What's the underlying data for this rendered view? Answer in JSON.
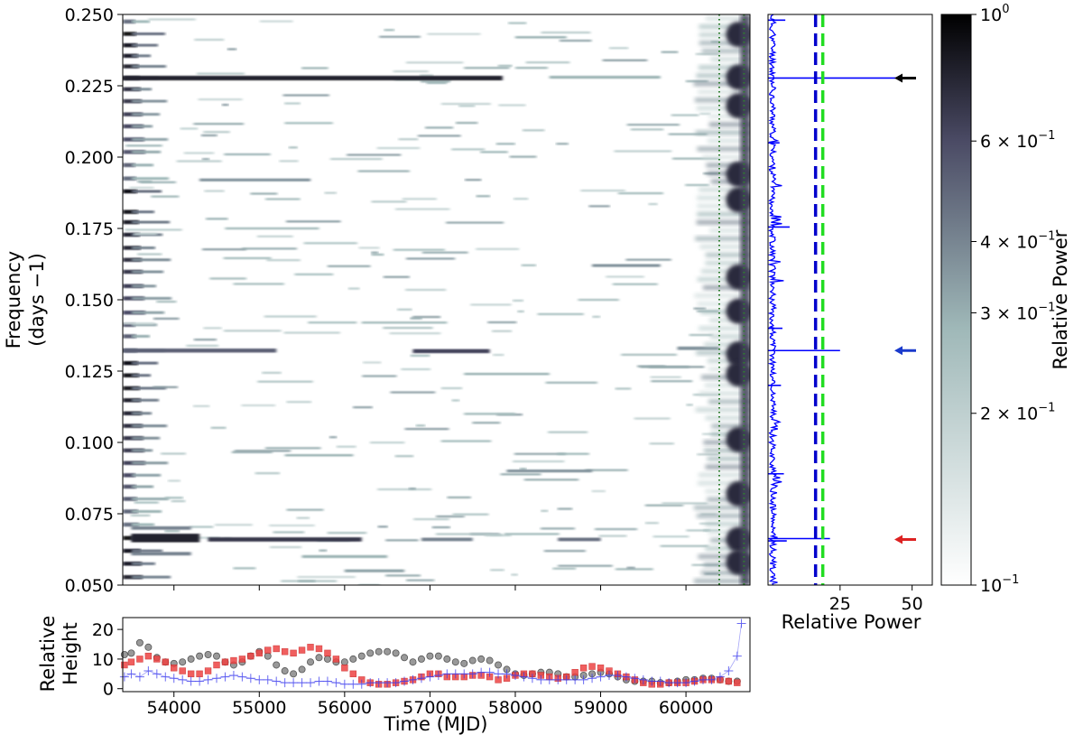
{
  "chart_data": [
    {
      "id": "dynamic-periodogram",
      "type": "heatmap",
      "xlim": [
        53400,
        60750
      ],
      "ylim": [
        0.05,
        0.25
      ],
      "ylabel_line1": "Frequency",
      "ylabel_line2": "(days −1)",
      "yticks": [
        0.05,
        0.075,
        0.1,
        0.125,
        0.15,
        0.175,
        0.2,
        0.225,
        0.25
      ],
      "ytick_labels": [
        "0.050",
        "0.075",
        "0.100",
        "0.125",
        "0.150",
        "0.175",
        "0.200",
        "0.225",
        "0.250"
      ],
      "xticks": [
        54000,
        55000,
        56000,
        57000,
        58000,
        59000,
        60000
      ],
      "vlines": [
        60390,
        60680
      ],
      "vline_color": "#2e7d2e",
      "cmap": [
        "#ffffff",
        "#9fb8b8",
        "#4a4a64",
        "#000000"
      ],
      "streaks": [
        {
          "x0": 53400,
          "x1": 57850,
          "f": 0.2277,
          "w": 0.0016,
          "i": 0.85
        },
        {
          "x0": 58400,
          "x1": 59700,
          "f": 0.228,
          "w": 0.001,
          "i": 0.35
        },
        {
          "x0": 53400,
          "x1": 55200,
          "f": 0.1322,
          "w": 0.0014,
          "i": 0.6
        },
        {
          "x0": 56800,
          "x1": 57700,
          "f": 0.132,
          "w": 0.0014,
          "i": 0.7
        },
        {
          "x0": 59900,
          "x1": 60390,
          "f": 0.133,
          "w": 0.0012,
          "i": 0.45
        },
        {
          "x0": 53500,
          "x1": 54300,
          "f": 0.0665,
          "w": 0.003,
          "i": 0.85
        },
        {
          "x0": 54400,
          "x1": 56200,
          "f": 0.066,
          "w": 0.0015,
          "i": 0.75
        },
        {
          "x0": 56900,
          "x1": 57500,
          "f": 0.066,
          "w": 0.0012,
          "i": 0.5
        },
        {
          "x0": 58500,
          "x1": 59000,
          "f": 0.066,
          "w": 0.0012,
          "i": 0.55
        },
        {
          "x0": 53500,
          "x1": 54200,
          "f": 0.07,
          "w": 0.0012,
          "i": 0.5
        },
        {
          "x0": 53500,
          "x1": 54200,
          "f": 0.061,
          "w": 0.0012,
          "i": 0.5
        },
        {
          "x0": 55500,
          "x1": 56500,
          "f": 0.06,
          "w": 0.001,
          "i": 0.35
        },
        {
          "x0": 56000,
          "x1": 56700,
          "f": 0.055,
          "w": 0.001,
          "i": 0.4
        },
        {
          "x0": 54300,
          "x1": 55600,
          "f": 0.192,
          "w": 0.001,
          "i": 0.45
        },
        {
          "x0": 54600,
          "x1": 55700,
          "f": 0.175,
          "w": 0.0008,
          "i": 0.3
        },
        {
          "x0": 58900,
          "x1": 59700,
          "f": 0.162,
          "w": 0.001,
          "i": 0.45
        },
        {
          "x0": 57400,
          "x1": 58000,
          "f": 0.11,
          "w": 0.0008,
          "i": 0.3
        },
        {
          "x0": 57900,
          "x1": 58900,
          "f": 0.09,
          "w": 0.001,
          "i": 0.45
        },
        {
          "x0": 55300,
          "x1": 56100,
          "f": 0.0955,
          "w": 0.0008,
          "i": 0.35
        },
        {
          "x0": 57400,
          "x1": 58400,
          "f": 0.124,
          "w": 0.0008,
          "i": 0.35
        },
        {
          "x0": 56200,
          "x1": 57200,
          "f": 0.142,
          "w": 0.0008,
          "i": 0.3
        },
        {
          "x0": 58000,
          "x1": 58600,
          "f": 0.242,
          "w": 0.0008,
          "i": 0.35
        }
      ],
      "left_column_freqs": [
        0.2475,
        0.2432,
        0.2392,
        0.2355,
        0.2318,
        0.2277,
        0.2238,
        0.2196,
        0.215,
        0.2108,
        0.2062,
        0.2018,
        0.1972,
        0.1925,
        0.188,
        0.1808,
        0.1772,
        0.1728,
        0.1682,
        0.164,
        0.1598,
        0.1548,
        0.1505,
        0.1455,
        0.1412,
        0.1372,
        0.1322,
        0.1278,
        0.1235,
        0.119,
        0.1148,
        0.1102,
        0.1058,
        0.1015,
        0.0972,
        0.0928,
        0.0885,
        0.0845,
        0.0802,
        0.0758,
        0.0712,
        0.0665,
        0.062,
        0.0575,
        0.0528
      ],
      "right_edge_blobs": [
        0.243,
        0.228,
        0.218,
        0.194,
        0.185,
        0.158,
        0.146,
        0.131,
        0.124,
        0.101,
        0.082,
        0.066,
        0.058
      ]
    },
    {
      "id": "global-periodogram",
      "type": "line",
      "xlim": [
        0,
        57
      ],
      "ylim": [
        0.05,
        0.25
      ],
      "xlabel": "Relative Power",
      "xticks": [
        25,
        50
      ],
      "line_color": "#0000ff",
      "thresholds": [
        {
          "x": 16.5,
          "color": "#0000cc"
        },
        {
          "x": 19.0,
          "color": "#22dd22"
        }
      ],
      "peaks": [
        {
          "f": 0.2277,
          "p": 47.0
        },
        {
          "f": 0.1322,
          "p": 25.0
        },
        {
          "f": 0.0663,
          "p": 21.5
        },
        {
          "f": 0.0655,
          "p": 6.5
        },
        {
          "f": 0.1755,
          "p": 7.5
        },
        {
          "f": 0.248,
          "p": 6.0
        },
        {
          "f": 0.089,
          "p": 5.5
        },
        {
          "f": 0.14,
          "p": 5.0
        },
        {
          "f": 0.12,
          "p": 4.5
        },
        {
          "f": 0.205,
          "p": 4.0
        }
      ],
      "arrows": [
        {
          "f": 0.2277,
          "color": "#000000"
        },
        {
          "f": 0.1322,
          "color": "#1a3acc"
        },
        {
          "f": 0.066,
          "color": "#dd2222"
        }
      ]
    },
    {
      "id": "colorbar",
      "type": "heatmap",
      "label": "Relative Power",
      "scale": "log",
      "range": [
        0.1,
        1.0
      ],
      "ticks": [
        {
          "v": 1.0,
          "m": "10",
          "e": "0"
        },
        {
          "v": 0.6,
          "m": "6 × 10",
          "e": "−1"
        },
        {
          "v": 0.4,
          "m": "4 × 10",
          "e": "−1"
        },
        {
          "v": 0.3,
          "m": "3 × 10",
          "e": "−1"
        },
        {
          "v": 0.2,
          "m": "2 × 10",
          "e": "−1"
        },
        {
          "v": 0.1,
          "m": "10",
          "e": "−1"
        }
      ]
    },
    {
      "id": "relative-height",
      "type": "scatter",
      "xlim": [
        53400,
        60750
      ],
      "ylim": [
        -1,
        24
      ],
      "xlabel": "Time (MJD)",
      "ylabel_line1": "Relative",
      "ylabel_line2": "Height",
      "xticks": [
        54000,
        55000,
        56000,
        57000,
        58000,
        59000,
        60000
      ],
      "xtick_labels": [
        "54000",
        "55000",
        "56000",
        "57000",
        "58000",
        "59000",
        "60000"
      ],
      "yticks": [
        0,
        10,
        20
      ],
      "ytick_labels": [
        "0",
        "10",
        "20"
      ],
      "series": [
        {
          "marker": "circle",
          "color": "#3a3a3a",
          "x": [
            53420,
            53500,
            53600,
            53700,
            53800,
            53900,
            54000,
            54100,
            54200,
            54300,
            54400,
            54500,
            54600,
            54700,
            54800,
            54900,
            55000,
            55100,
            55200,
            55300,
            55400,
            55500,
            55600,
            55700,
            55800,
            55900,
            56000,
            56100,
            56200,
            56300,
            56400,
            56500,
            56600,
            56700,
            56800,
            56900,
            57000,
            57100,
            57200,
            57300,
            57400,
            57500,
            57600,
            57700,
            57800,
            57900,
            58000,
            58100,
            58200,
            58300,
            58400,
            58500,
            58600,
            58700,
            58800,
            58900,
            59000,
            59100,
            59200,
            59300,
            59400,
            59500,
            59600,
            59700,
            59800,
            59900,
            60000,
            60100,
            60200,
            60300,
            60400,
            60500,
            60600
          ],
          "y": [
            11.5,
            12,
            15.5,
            14,
            10.5,
            9,
            8.5,
            9,
            10,
            11,
            11.5,
            11,
            9,
            8,
            9,
            11,
            12.5,
            11,
            8,
            6,
            5,
            6.5,
            9,
            10.5,
            10,
            9,
            9,
            10,
            11,
            12,
            12.5,
            12.5,
            12,
            10.5,
            9,
            10,
            11,
            11,
            10,
            9,
            8.5,
            9.5,
            10,
            9.5,
            8,
            6.5,
            5,
            4.5,
            5,
            5.5,
            5.5,
            5,
            4,
            4,
            4.5,
            5,
            5.5,
            5,
            4,
            3,
            2.5,
            2.5,
            2.5,
            2,
            2,
            2.5,
            3,
            3,
            3.5,
            3.5,
            3,
            2.5,
            2.5
          ]
        },
        {
          "marker": "square",
          "color": "#ee4444",
          "x": [
            53420,
            53500,
            53600,
            53700,
            53800,
            53900,
            54000,
            54100,
            54200,
            54300,
            54400,
            54500,
            54600,
            54700,
            54800,
            54900,
            55000,
            55100,
            55200,
            55300,
            55400,
            55500,
            55600,
            55700,
            55800,
            55900,
            56000,
            56100,
            56200,
            56300,
            56400,
            56500,
            56600,
            56700,
            56800,
            56900,
            57000,
            57100,
            57200,
            57300,
            57400,
            57500,
            57600,
            57700,
            57800,
            57900,
            58000,
            58100,
            58200,
            58300,
            58400,
            58500,
            58600,
            58700,
            58800,
            58900,
            59000,
            59100,
            59200,
            59300,
            59400,
            59500,
            59600,
            59700,
            59800,
            59900,
            60000,
            60100,
            60200,
            60300,
            60400,
            60500,
            60600
          ],
          "y": [
            8,
            9,
            10,
            11,
            10,
            9,
            7,
            6,
            5,
            5,
            6,
            8,
            9,
            9.5,
            10,
            11,
            12,
            13,
            13.5,
            12.5,
            12,
            13,
            14,
            13.5,
            12,
            10,
            7,
            5,
            3,
            2,
            1.5,
            1.5,
            2,
            2.5,
            3,
            4,
            5,
            5,
            4,
            4,
            4,
            4.5,
            4.5,
            4,
            3,
            3.5,
            4.5,
            5,
            5,
            4.5,
            4,
            3.5,
            4,
            5.5,
            7,
            7.5,
            7,
            6,
            5,
            4,
            3,
            2,
            1.5,
            1.5,
            2,
            2,
            2,
            2.5,
            3,
            3,
            3,
            2.5,
            2
          ]
        },
        {
          "marker": "plus",
          "color": "#3a3aee",
          "x": [
            53420,
            53500,
            53600,
            53700,
            53800,
            53900,
            54000,
            54100,
            54200,
            54300,
            54400,
            54500,
            54600,
            54700,
            54800,
            54900,
            55000,
            55100,
            55200,
            55300,
            55400,
            55500,
            55600,
            55700,
            55800,
            55900,
            56000,
            56100,
            56200,
            56300,
            56400,
            56500,
            56600,
            56700,
            56800,
            56900,
            57000,
            57100,
            57200,
            57300,
            57400,
            57500,
            57600,
            57700,
            57800,
            57900,
            58000,
            58100,
            58200,
            58300,
            58400,
            58500,
            58600,
            58700,
            58800,
            58900,
            59000,
            59100,
            59200,
            59300,
            59400,
            59500,
            59600,
            59700,
            59800,
            59900,
            60000,
            60100,
            60200,
            60300,
            60400,
            60500,
            60600,
            60650
          ],
          "y": [
            4,
            5,
            4,
            6,
            5,
            4,
            3.5,
            3,
            2.5,
            2.5,
            3,
            3.5,
            4,
            4.5,
            4,
            3.5,
            3,
            3,
            2.5,
            2,
            2,
            2,
            2,
            2.5,
            2.5,
            2,
            1.5,
            1.5,
            1.5,
            2,
            2,
            2,
            2,
            2.5,
            3,
            3.5,
            4,
            4.5,
            5,
            5,
            5,
            5,
            5.5,
            5.5,
            5,
            5,
            4.5,
            4,
            3.5,
            3,
            3,
            3,
            3,
            3,
            3,
            3.5,
            4,
            4.5,
            4.5,
            4,
            3.5,
            3,
            2.5,
            2.5,
            2,
            2,
            2,
            2.5,
            3,
            3,
            4,
            6,
            11,
            22
          ]
        }
      ]
    }
  ]
}
